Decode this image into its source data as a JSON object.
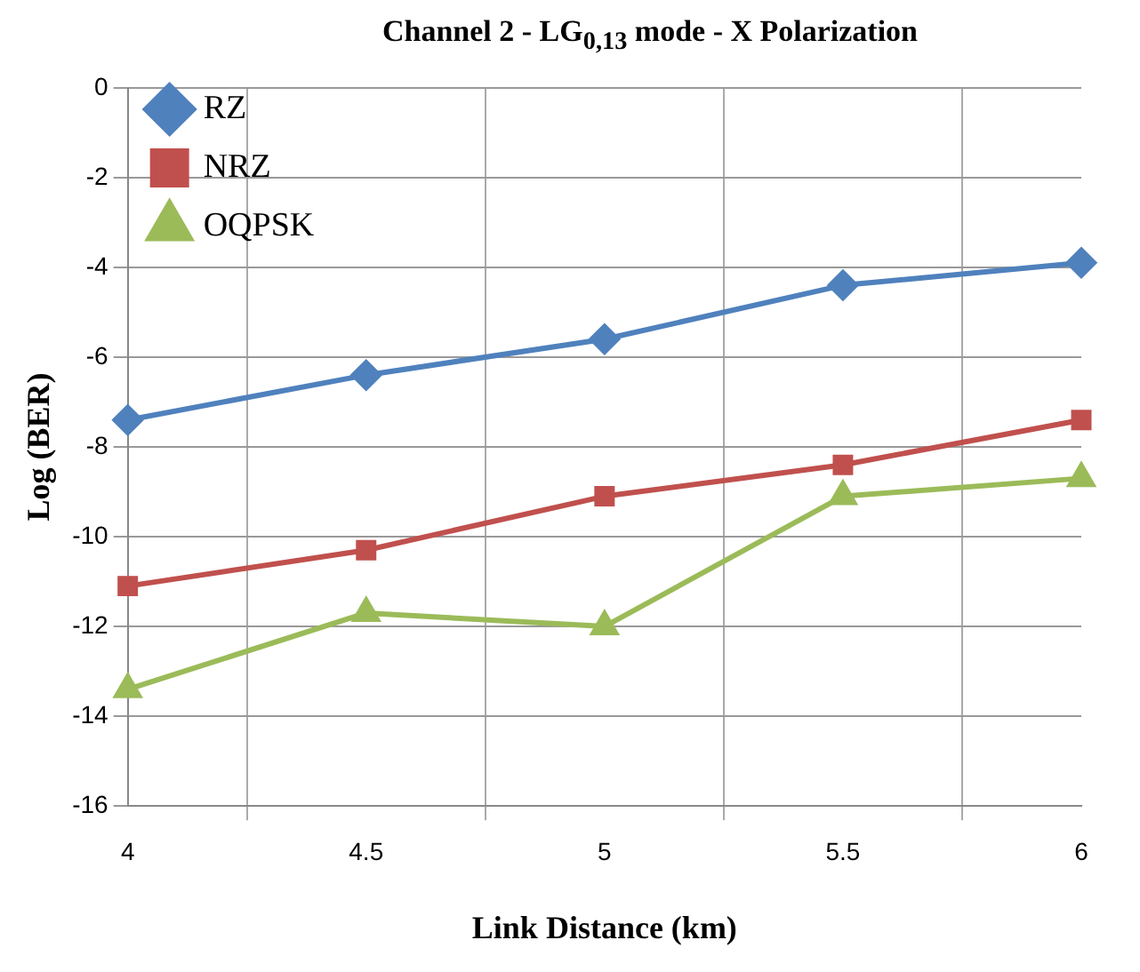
{
  "chart_data": {
    "type": "line",
    "title": "Channel 2 - LG$_{0,13}$ mode - X Polarization",
    "xlabel": "Link Distance (km)",
    "ylabel": "Log (BER)",
    "categories": [
      "4",
      "4.5",
      "5",
      "5.5",
      "6"
    ],
    "series": [
      {
        "name": "RZ",
        "color": "#4f81bd",
        "marker": "diamond",
        "values": [
          -7.4,
          -6.4,
          -5.6,
          -4.4,
          -3.9
        ]
      },
      {
        "name": "NRZ",
        "color": "#c0504d",
        "marker": "square",
        "values": [
          -11.1,
          -10.3,
          -9.1,
          -8.4,
          -7.4
        ]
      },
      {
        "name": "OQPSK",
        "color": "#9bbb59",
        "marker": "triangle",
        "values": [
          -13.4,
          -11.7,
          -12.0,
          -9.1,
          -8.7
        ]
      }
    ],
    "ylim": [
      -16,
      0
    ],
    "yticks": [
      -16,
      -14,
      -12,
      -10,
      -8,
      -6,
      -4,
      -2,
      0
    ],
    "grid": true,
    "legend": "top left",
    "line_style": "solid"
  }
}
